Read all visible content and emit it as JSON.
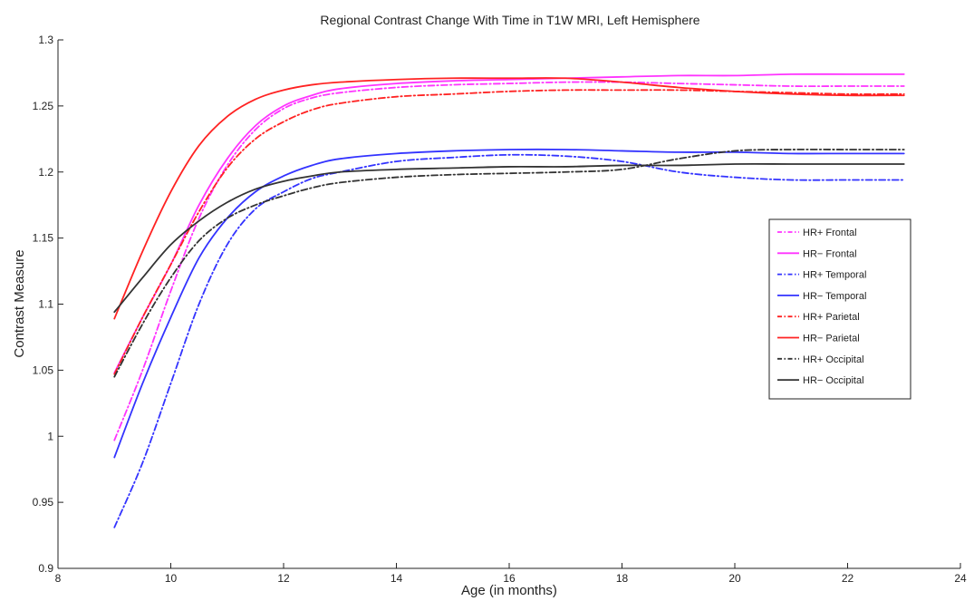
{
  "chart_data": {
    "type": "line",
    "title": "Regional Contrast Change With Time in T1W MRI, Left Hemisphere",
    "xlabel": "Age (in months)",
    "ylabel": "Contrast Measure",
    "xlim": [
      8,
      24
    ],
    "ylim": [
      0.9,
      1.3
    ],
    "xticks": [
      "8",
      "10",
      "12",
      "14",
      "16",
      "18",
      "20",
      "22",
      "24"
    ],
    "yticks": [
      "0.9",
      "0.95",
      "1",
      "1.05",
      "1.1",
      "1.15",
      "1.2",
      "1.25",
      "1.3"
    ],
    "grid": false,
    "legend_position": "right",
    "x": [
      9,
      9.5,
      10,
      10.5,
      11,
      11.5,
      12,
      12.5,
      13,
      14,
      15,
      16,
      17,
      18,
      19,
      20,
      21,
      22,
      23
    ],
    "series": [
      {
        "name": "HR+ Frontal",
        "color": "#ff33ff",
        "dash": "dashdot",
        "values": [
          0.997,
          1.05,
          1.11,
          1.165,
          1.205,
          1.232,
          1.248,
          1.256,
          1.26,
          1.264,
          1.266,
          1.267,
          1.268,
          1.268,
          1.267,
          1.266,
          1.265,
          1.265,
          1.265
        ]
      },
      {
        "name": "HR− Frontal",
        "color": "#ff33ff",
        "dash": "solid",
        "values": [
          1.048,
          1.09,
          1.13,
          1.175,
          1.21,
          1.235,
          1.25,
          1.258,
          1.263,
          1.267,
          1.269,
          1.27,
          1.271,
          1.272,
          1.273,
          1.273,
          1.274,
          1.274,
          1.274
        ]
      },
      {
        "name": "HR+ Temporal",
        "color": "#3333ff",
        "dash": "dashdot",
        "values": [
          0.931,
          0.98,
          1.04,
          1.1,
          1.145,
          1.172,
          1.185,
          1.195,
          1.2,
          1.208,
          1.211,
          1.213,
          1.212,
          1.208,
          1.2,
          1.196,
          1.194,
          1.194,
          1.194
        ]
      },
      {
        "name": "HR− Temporal",
        "color": "#3333ff",
        "dash": "solid",
        "values": [
          0.984,
          1.04,
          1.09,
          1.135,
          1.165,
          1.185,
          1.197,
          1.205,
          1.21,
          1.214,
          1.216,
          1.217,
          1.217,
          1.216,
          1.215,
          1.215,
          1.214,
          1.214,
          1.214
        ]
      },
      {
        "name": "HR+ Parietal",
        "color": "#ff2222",
        "dash": "dashdot",
        "values": [
          1.047,
          1.09,
          1.13,
          1.17,
          1.203,
          1.225,
          1.238,
          1.247,
          1.252,
          1.257,
          1.259,
          1.261,
          1.262,
          1.262,
          1.262,
          1.261,
          1.26,
          1.259,
          1.259
        ]
      },
      {
        "name": "HR− Parietal",
        "color": "#ff2222",
        "dash": "solid",
        "values": [
          1.089,
          1.14,
          1.185,
          1.22,
          1.242,
          1.255,
          1.262,
          1.266,
          1.268,
          1.27,
          1.271,
          1.271,
          1.271,
          1.268,
          1.264,
          1.261,
          1.259,
          1.258,
          1.258
        ]
      },
      {
        "name": "HR+ Occipital",
        "color": "#333333",
        "dash": "dashdot",
        "values": [
          1.045,
          1.085,
          1.12,
          1.148,
          1.165,
          1.175,
          1.182,
          1.188,
          1.192,
          1.196,
          1.198,
          1.199,
          1.2,
          1.202,
          1.21,
          1.216,
          1.217,
          1.217,
          1.217
        ]
      },
      {
        "name": "HR− Occipital",
        "color": "#333333",
        "dash": "solid",
        "values": [
          1.094,
          1.12,
          1.145,
          1.163,
          1.177,
          1.187,
          1.193,
          1.197,
          1.2,
          1.202,
          1.203,
          1.204,
          1.204,
          1.205,
          1.205,
          1.206,
          1.206,
          1.206,
          1.206
        ]
      }
    ]
  }
}
